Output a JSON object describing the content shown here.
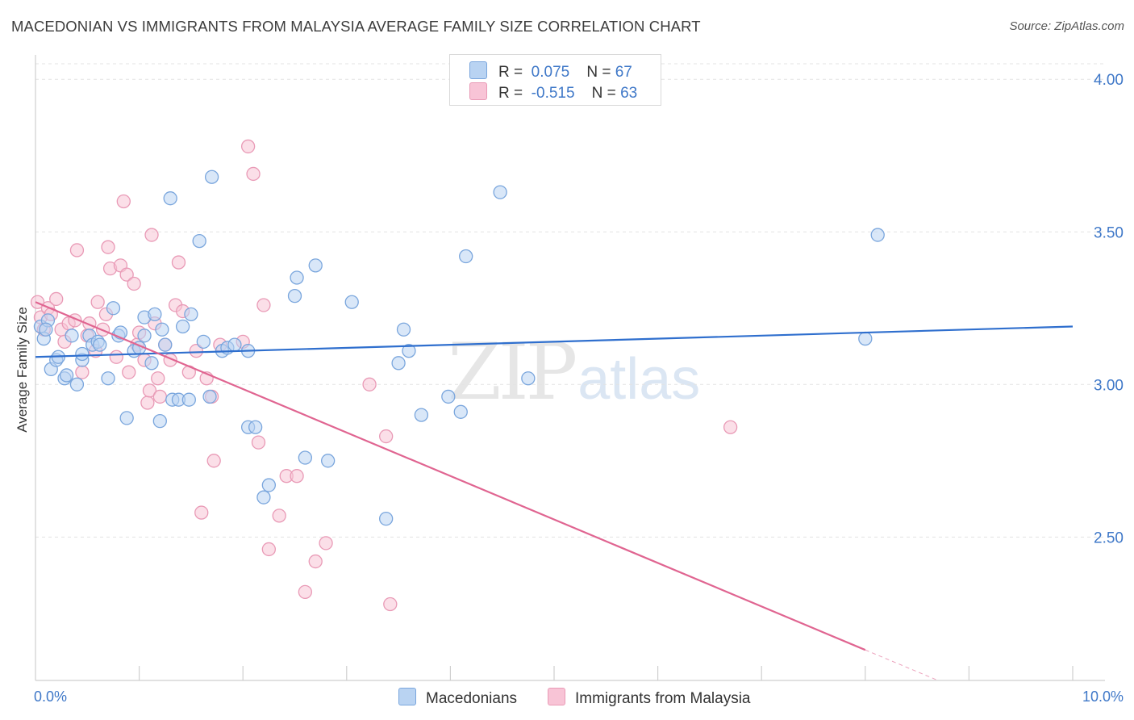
{
  "header": {
    "title": "MACEDONIAN VS IMMIGRANTS FROM MALAYSIA AVERAGE FAMILY SIZE CORRELATION CHART",
    "source": "Source: ZipAtlas.com"
  },
  "watermark": {
    "zip": "ZIP",
    "atlas": "atlas"
  },
  "legend": {
    "rows": [
      {
        "r_label": "R =",
        "r_value": "0.075",
        "n_label": "N =",
        "n_value": "67"
      },
      {
        "r_label": "R =",
        "r_value": "-0.515",
        "n_label": "N =",
        "n_value": "63"
      }
    ]
  },
  "bottom_legend": {
    "series1": "Macedonians",
    "series2": "Immigrants from Malaysia"
  },
  "chart_data": {
    "type": "scatter",
    "title": "MACEDONIAN VS IMMIGRANTS FROM MALAYSIA AVERAGE FAMILY SIZE CORRELATION CHART",
    "xlabel": "",
    "ylabel": "Average Family Size",
    "xlim": [
      0,
      10
    ],
    "ylim": [
      2.03,
      4.08
    ],
    "x_tick_labels": [
      {
        "value": 0,
        "label": "0.0%"
      },
      {
        "value": 10,
        "label": "10.0%"
      }
    ],
    "y_ticks": [
      2.5,
      3.0,
      3.5,
      4.0
    ],
    "y_tick_labels": [
      "2.50",
      "3.00",
      "3.50",
      "4.00"
    ],
    "x_minor_ticks": [
      1,
      2,
      3,
      4,
      5,
      6,
      7,
      8,
      9,
      10
    ],
    "grid": "horizontal dashed",
    "legend_position": "top-center",
    "colors": {
      "series1_fill": "#b9d3f2",
      "series1_stroke": "#7aa6dd",
      "series1_line": "#2f6fce",
      "series2_fill": "#f8c4d6",
      "series2_stroke": "#e99ab6",
      "series2_line": "#e06591",
      "tick_label": "#3f78c8",
      "grid": "#e3e3e3"
    },
    "series": [
      {
        "name": "Macedonians",
        "r": 0.075,
        "n": 67,
        "trend": {
          "x": [
            0,
            10
          ],
          "y": [
            3.09,
            3.19
          ]
        },
        "points": [
          [
            0.05,
            3.19
          ],
          [
            0.08,
            3.15
          ],
          [
            0.12,
            3.21
          ],
          [
            0.15,
            3.05
          ],
          [
            0.2,
            3.08
          ],
          [
            0.22,
            3.09
          ],
          [
            0.28,
            3.02
          ],
          [
            0.3,
            3.03
          ],
          [
            0.35,
            3.16
          ],
          [
            0.45,
            3.08
          ],
          [
            0.45,
            3.1
          ],
          [
            0.52,
            3.16
          ],
          [
            0.55,
            3.13
          ],
          [
            0.6,
            3.14
          ],
          [
            0.62,
            3.13
          ],
          [
            0.7,
            3.02
          ],
          [
            0.75,
            3.25
          ],
          [
            0.8,
            3.16
          ],
          [
            0.82,
            3.17
          ],
          [
            0.88,
            2.89
          ],
          [
            0.95,
            3.11
          ],
          [
            1.0,
            3.12
          ],
          [
            1.05,
            3.16
          ],
          [
            1.05,
            3.22
          ],
          [
            1.12,
            3.07
          ],
          [
            1.15,
            3.23
          ],
          [
            1.2,
            2.88
          ],
          [
            1.22,
            3.18
          ],
          [
            1.25,
            3.13
          ],
          [
            1.3,
            3.61
          ],
          [
            1.32,
            2.95
          ],
          [
            1.38,
            2.95
          ],
          [
            1.42,
            3.19
          ],
          [
            1.48,
            2.95
          ],
          [
            1.5,
            3.23
          ],
          [
            1.58,
            3.47
          ],
          [
            1.62,
            3.14
          ],
          [
            1.7,
            3.68
          ],
          [
            1.68,
            2.96
          ],
          [
            1.8,
            3.11
          ],
          [
            1.85,
            3.12
          ],
          [
            1.92,
            3.13
          ],
          [
            2.05,
            3.11
          ],
          [
            2.05,
            2.86
          ],
          [
            2.12,
            2.86
          ],
          [
            2.2,
            2.63
          ],
          [
            2.25,
            2.67
          ],
          [
            2.5,
            3.29
          ],
          [
            2.52,
            3.35
          ],
          [
            2.6,
            2.76
          ],
          [
            2.7,
            3.39
          ],
          [
            2.82,
            2.75
          ],
          [
            3.05,
            3.27
          ],
          [
            3.38,
            2.56
          ],
          [
            3.5,
            3.07
          ],
          [
            3.55,
            3.18
          ],
          [
            3.6,
            3.11
          ],
          [
            3.72,
            2.9
          ],
          [
            3.98,
            2.96
          ],
          [
            4.1,
            2.91
          ],
          [
            4.15,
            3.42
          ],
          [
            4.48,
            3.63
          ],
          [
            4.75,
            3.02
          ],
          [
            8.12,
            3.49
          ],
          [
            8.0,
            3.15
          ],
          [
            0.1,
            3.18
          ],
          [
            0.4,
            3.0
          ]
        ]
      },
      {
        "name": "Immigrants from Malaysia",
        "r": -0.515,
        "n": 63,
        "trend": {
          "x": [
            0,
            8.0
          ],
          "y": [
            3.27,
            2.13
          ]
        },
        "points": [
          [
            0.02,
            3.27
          ],
          [
            0.05,
            3.22
          ],
          [
            0.08,
            3.18
          ],
          [
            0.12,
            3.25
          ],
          [
            0.15,
            3.23
          ],
          [
            0.2,
            3.28
          ],
          [
            0.25,
            3.18
          ],
          [
            0.28,
            3.14
          ],
          [
            0.32,
            3.2
          ],
          [
            0.38,
            3.21
          ],
          [
            0.4,
            3.44
          ],
          [
            0.45,
            3.04
          ],
          [
            0.5,
            3.16
          ],
          [
            0.52,
            3.2
          ],
          [
            0.58,
            3.11
          ],
          [
            0.6,
            3.27
          ],
          [
            0.65,
            3.18
          ],
          [
            0.68,
            3.23
          ],
          [
            0.7,
            3.45
          ],
          [
            0.72,
            3.38
          ],
          [
            0.78,
            3.09
          ],
          [
            0.82,
            3.39
          ],
          [
            0.85,
            3.6
          ],
          [
            0.88,
            3.36
          ],
          [
            0.9,
            3.04
          ],
          [
            0.95,
            3.33
          ],
          [
            0.98,
            3.13
          ],
          [
            1.0,
            3.17
          ],
          [
            1.05,
            3.08
          ],
          [
            1.08,
            2.94
          ],
          [
            1.1,
            2.98
          ],
          [
            1.12,
            3.49
          ],
          [
            1.15,
            3.2
          ],
          [
            1.18,
            3.02
          ],
          [
            1.2,
            2.96
          ],
          [
            1.25,
            3.13
          ],
          [
            1.3,
            3.08
          ],
          [
            1.35,
            3.26
          ],
          [
            1.38,
            3.4
          ],
          [
            1.42,
            3.24
          ],
          [
            1.48,
            3.04
          ],
          [
            1.55,
            3.11
          ],
          [
            1.6,
            2.58
          ],
          [
            1.65,
            3.02
          ],
          [
            1.7,
            2.96
          ],
          [
            1.72,
            2.75
          ],
          [
            1.78,
            3.13
          ],
          [
            2.0,
            3.14
          ],
          [
            2.05,
            3.78
          ],
          [
            2.1,
            3.69
          ],
          [
            2.15,
            2.81
          ],
          [
            2.2,
            3.26
          ],
          [
            2.25,
            2.46
          ],
          [
            2.35,
            2.57
          ],
          [
            2.42,
            2.7
          ],
          [
            2.52,
            2.7
          ],
          [
            2.6,
            2.32
          ],
          [
            2.7,
            2.42
          ],
          [
            2.8,
            2.48
          ],
          [
            3.22,
            3.0
          ],
          [
            3.38,
            2.83
          ],
          [
            3.42,
            2.28
          ],
          [
            6.7,
            2.86
          ]
        ]
      }
    ]
  }
}
